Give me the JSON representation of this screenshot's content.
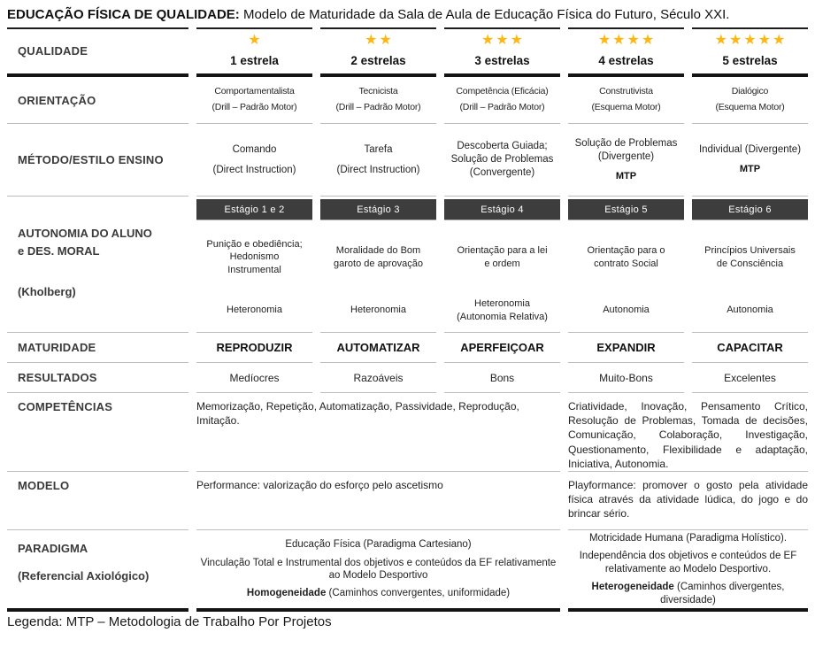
{
  "title": {
    "bold": "EDUCAÇÃO FÍSICA DE QUALIDADE:",
    "rest": "Modelo de Maturidade da Sala de Aula de Educação Física do Futuro, Século XXI."
  },
  "colors": {
    "star_gold": "#FDB713",
    "stage_bar_bg": "#3D3D3D",
    "divider_light": "#BDBDBD",
    "divider_dark": "#141414"
  },
  "table": {
    "qualidade": {
      "label": "QUALIDADE",
      "cells": [
        {
          "stars": "★",
          "label": "1 estrela"
        },
        {
          "stars": "★★",
          "label": "2 estrelas"
        },
        {
          "stars": "★★★",
          "label": "3 estrelas"
        },
        {
          "stars": "★★★★",
          "label": "4 estrelas"
        },
        {
          "stars": "★★★★★",
          "label": "5 estrelas"
        }
      ]
    },
    "orientacao": {
      "label": "ORIENTAÇÃO",
      "cells": [
        {
          "name": "Comportamentalista",
          "detail": "(Drill – Padrão Motor)"
        },
        {
          "name": "Tecnicista",
          "detail": "(Drill – Padrão Motor)"
        },
        {
          "name": "Competência (Eficácia)",
          "detail": "(Drill – Padrão Motor)"
        },
        {
          "name": "Construtivista",
          "detail": "(Esquema Motor)"
        },
        {
          "name": "Dialógico",
          "detail": "(Esquema Motor)"
        }
      ]
    },
    "metodo": {
      "label": "MÉTODO/ESTILO ENSINO",
      "cells": [
        {
          "main": "Comando",
          "sub": "(Direct Instruction)",
          "mtp": ""
        },
        {
          "main": "Tarefa",
          "sub": "(Direct Instruction)",
          "mtp": ""
        },
        {
          "main": "Descoberta Guiada; Solução de Problemas (Convergente)",
          "sub": "",
          "mtp": ""
        },
        {
          "main": "Solução de Problemas (Divergente)",
          "sub": "",
          "mtp": "MTP"
        },
        {
          "main": "Individual (Divergente)",
          "sub": "",
          "mtp": "MTP"
        }
      ]
    },
    "autonomia": {
      "label_line1": "AUTONOMIA DO ALUNO",
      "label_line2": "e DES. MORAL",
      "label_line3": "(Kholberg)",
      "cells": [
        {
          "stage": "Estágio 1 e 2",
          "moral": "Punição e obediência; Hedonismo Instrumental",
          "autonomy": "Heteronomia",
          "autonomy_note": ""
        },
        {
          "stage": "Estágio 3",
          "moral": "Moralidade do Bom garoto de aprovação",
          "autonomy": "Heteronomia",
          "autonomy_note": ""
        },
        {
          "stage": "Estágio 4",
          "moral": "Orientação para a lei e ordem",
          "autonomy": "Heteronomia",
          "autonomy_note": "(Autonomia Relativa)"
        },
        {
          "stage": "Estágio 5",
          "moral": "Orientação para o contrato Social",
          "autonomy": "Autonomia",
          "autonomy_note": ""
        },
        {
          "stage": "Estágio 6",
          "moral": "Princípios Universais de Consciência",
          "autonomy": "Autonomia",
          "autonomy_note": ""
        }
      ]
    },
    "maturidade": {
      "label": "MATURIDADE",
      "values": [
        "REPRODUZIR",
        "AUTOMATIZAR",
        "APERFEIÇOAR",
        "EXPANDIR",
        "CAPACITAR"
      ]
    },
    "resultados": {
      "label": "RESULTADOS",
      "values": [
        "Medíocres",
        "Razoáveis",
        "Bons",
        "Muito-Bons",
        "Excelentes"
      ]
    },
    "competencias": {
      "label": "COMPETÊNCIAS",
      "left": "Memorização, Repetição, Automatização, Passividade, Reprodução, Imitação.",
      "right": "Criatividade, Inovação, Pensamento Crítico, Resolução de Problemas, Tomada de decisões, Comunicação, Colaboração, Investigação, Questionamento, Flexibilidade e adaptação, Iniciativa, Autonomia."
    },
    "modelo": {
      "label": "MODELO",
      "left": "Performance: valorização do esforço pelo ascetismo",
      "right": "Playformance: promover o gosto pela atividade física através da atividade lúdica, do jogo e do brincar sério."
    },
    "paradigma": {
      "label": "PARADIGMA",
      "sublabel": "(Referencial Axiológico)",
      "left": {
        "p1": "Educação Física (Paradigma Cartesiano)",
        "p2": "Vinculação Total e Instrumental dos objetivos e conteúdos da EF relativamente ao Modelo Desportivo",
        "p3_bold": "Homogeneidade",
        "p3_rest": " (Caminhos convergentes, uniformidade)"
      },
      "right": {
        "p1": "Motricidade Humana (Paradigma Holístico).",
        "p2": "Independência dos objetivos e conteúdos de EF relativamente ao Modelo Desportivo.",
        "p3_bold": "Heterogeneidade",
        "p3_rest": " (Caminhos divergentes, diversidade)"
      }
    }
  },
  "legend": "Legenda: MTP – Metodologia de Trabalho Por Projetos"
}
